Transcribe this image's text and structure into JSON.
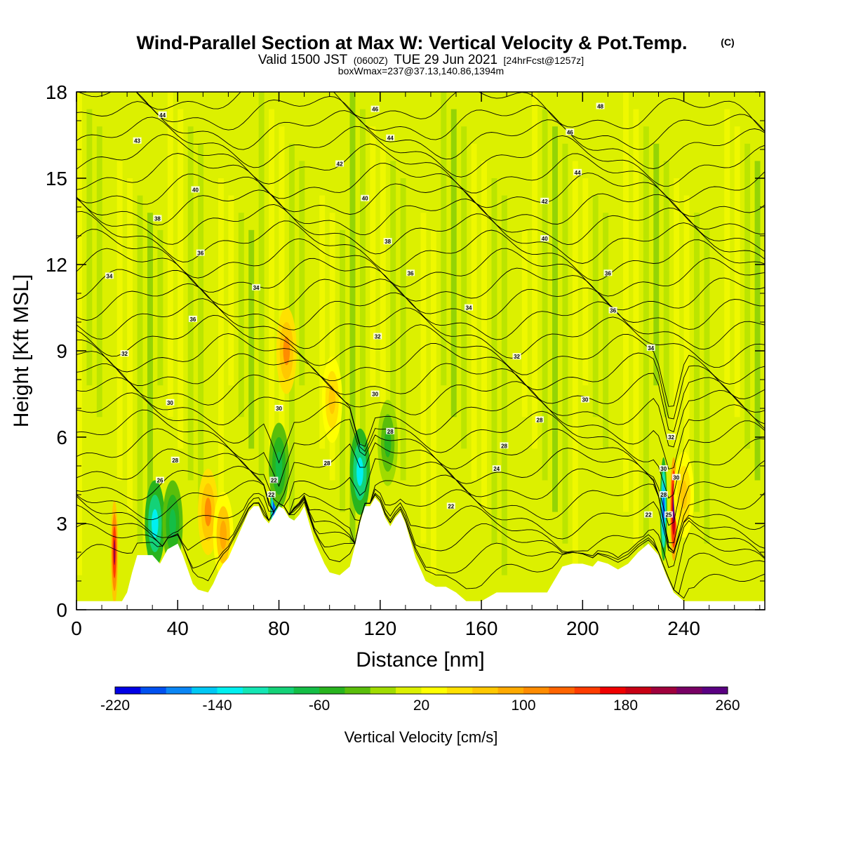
{
  "title": {
    "main": "Wind-Parallel Section at Max W: Vertical Velocity & Pot.Temp.",
    "copyright": "(C)",
    "valid_prefix": "Valid 1500 JST",
    "valid_utc": "(0600Z)",
    "valid_date": "TUE 29 Jun 2021",
    "forecast": "[24hrFcst@1257z]",
    "boxwmax": "boxWmax=237@37.13,140.86,1394m"
  },
  "chart_data": {
    "type": "heatmap",
    "xlabel": "Distance [nm]",
    "ylabel": "Height [Kft MSL]",
    "xlim": [
      0,
      272
    ],
    "ylim": [
      0,
      18
    ],
    "x_ticks": [
      0,
      40,
      80,
      120,
      160,
      200,
      240
    ],
    "y_ticks": [
      0,
      3,
      6,
      9,
      12,
      15,
      18
    ],
    "colorbar": {
      "label": "Vertical Velocity [cm/s]",
      "ticks": [
        -220,
        -140,
        -60,
        20,
        100,
        180,
        260
      ],
      "range": [
        -220,
        260
      ],
      "colors": [
        "#0000e6",
        "#0050f0",
        "#0a86f5",
        "#00c8f5",
        "#00f0f0",
        "#14e6b4",
        "#14d278",
        "#14be46",
        "#28b41e",
        "#5abe0a",
        "#a0dc00",
        "#dcf000",
        "#ffff00",
        "#ffe100",
        "#ffc800",
        "#ffaa00",
        "#ff8c00",
        "#ff6400",
        "#ff3c00",
        "#f00000",
        "#c80014",
        "#a0003c",
        "#780064",
        "#5a0082"
      ]
    },
    "background_value_cm_s": 10,
    "terrain_profile": [
      [
        0,
        0.3
      ],
      [
        10,
        0.3
      ],
      [
        18,
        0.3
      ],
      [
        20,
        0.6
      ],
      [
        22,
        1.3
      ],
      [
        24,
        1.9
      ],
      [
        30,
        1.9
      ],
      [
        33,
        1.6
      ],
      [
        36,
        2.1
      ],
      [
        40,
        2.3
      ],
      [
        42,
        1.9
      ],
      [
        44,
        1.4
      ],
      [
        46,
        0.9
      ],
      [
        48,
        0.7
      ],
      [
        52,
        0.6
      ],
      [
        54,
        0.9
      ],
      [
        56,
        1.3
      ],
      [
        58,
        1.6
      ],
      [
        60,
        1.8
      ],
      [
        62,
        2.2
      ],
      [
        64,
        2.6
      ],
      [
        66,
        3.0
      ],
      [
        68,
        3.4
      ],
      [
        70,
        3.6
      ],
      [
        72,
        3.6
      ],
      [
        74,
        3.2
      ],
      [
        76,
        3.0
      ],
      [
        78,
        3.3
      ],
      [
        80,
        3.6
      ],
      [
        82,
        3.5
      ],
      [
        84,
        3.2
      ],
      [
        86,
        3.1
      ],
      [
        88,
        3.3
      ],
      [
        90,
        3.6
      ],
      [
        92,
        3.0
      ],
      [
        94,
        2.4
      ],
      [
        96,
        2.0
      ],
      [
        98,
        1.6
      ],
      [
        100,
        1.3
      ],
      [
        104,
        1.2
      ],
      [
        108,
        1.5
      ],
      [
        110,
        2.2
      ],
      [
        112,
        3.0
      ],
      [
        114,
        3.6
      ],
      [
        116,
        3.6
      ],
      [
        118,
        3.9
      ],
      [
        120,
        3.7
      ],
      [
        122,
        3.2
      ],
      [
        124,
        2.9
      ],
      [
        126,
        3.2
      ],
      [
        128,
        3.4
      ],
      [
        130,
        3.0
      ],
      [
        132,
        2.4
      ],
      [
        134,
        1.8
      ],
      [
        136,
        1.4
      ],
      [
        138,
        1.0
      ],
      [
        142,
        0.8
      ],
      [
        146,
        0.8
      ],
      [
        150,
        0.6
      ],
      [
        154,
        0.3
      ],
      [
        160,
        0.3
      ],
      [
        166,
        0.6
      ],
      [
        176,
        0.6
      ],
      [
        182,
        0.6
      ],
      [
        186,
        0.6
      ],
      [
        188,
        0.9
      ],
      [
        190,
        1.2
      ],
      [
        192,
        1.5
      ],
      [
        196,
        1.6
      ],
      [
        200,
        1.6
      ],
      [
        204,
        1.5
      ],
      [
        206,
        1.7
      ],
      [
        210,
        1.6
      ],
      [
        214,
        1.4
      ],
      [
        218,
        1.6
      ],
      [
        222,
        2.0
      ],
      [
        226,
        2.3
      ],
      [
        230,
        1.9
      ],
      [
        233,
        1.2
      ],
      [
        236,
        0.6
      ],
      [
        240,
        0.3
      ],
      [
        272,
        0.3
      ]
    ],
    "theta_contours_c": [
      20,
      21,
      22,
      23,
      24,
      25,
      26,
      27,
      28,
      29,
      30,
      31,
      32,
      33,
      34,
      35,
      36,
      37,
      38,
      39,
      40,
      41,
      42,
      43,
      44,
      45,
      46,
      47,
      48,
      49
    ],
    "theta_labels": [
      {
        "x": 34,
        "y": 17.2,
        "text": "44"
      },
      {
        "x": 118,
        "y": 17.4,
        "text": "46"
      },
      {
        "x": 207,
        "y": 17.5,
        "text": "48"
      },
      {
        "x": 24,
        "y": 16.3,
        "text": "43"
      },
      {
        "x": 124,
        "y": 16.4,
        "text": "44"
      },
      {
        "x": 195,
        "y": 16.6,
        "text": "46"
      },
      {
        "x": 104,
        "y": 15.5,
        "text": "42"
      },
      {
        "x": 198,
        "y": 15.2,
        "text": "44"
      },
      {
        "x": 47,
        "y": 14.6,
        "text": "40"
      },
      {
        "x": 114,
        "y": 14.3,
        "text": "40"
      },
      {
        "x": 185,
        "y": 14.2,
        "text": "42"
      },
      {
        "x": 32,
        "y": 13.6,
        "text": "38"
      },
      {
        "x": 123,
        "y": 12.8,
        "text": "38"
      },
      {
        "x": 185,
        "y": 12.9,
        "text": "40"
      },
      {
        "x": 49,
        "y": 12.4,
        "text": "36"
      },
      {
        "x": 13,
        "y": 11.6,
        "text": "34"
      },
      {
        "x": 71,
        "y": 11.2,
        "text": "34"
      },
      {
        "x": 132,
        "y": 11.7,
        "text": "36"
      },
      {
        "x": 210,
        "y": 11.7,
        "text": "36"
      },
      {
        "x": 155,
        "y": 10.5,
        "text": "34"
      },
      {
        "x": 212,
        "y": 10.4,
        "text": "36"
      },
      {
        "x": 46,
        "y": 10.1,
        "text": "36"
      },
      {
        "x": 119,
        "y": 9.5,
        "text": "32"
      },
      {
        "x": 19,
        "y": 8.9,
        "text": "32"
      },
      {
        "x": 174,
        "y": 8.8,
        "text": "32"
      },
      {
        "x": 227,
        "y": 9.1,
        "text": "34"
      },
      {
        "x": 37,
        "y": 7.2,
        "text": "30"
      },
      {
        "x": 80,
        "y": 7.0,
        "text": "30"
      },
      {
        "x": 118,
        "y": 7.5,
        "text": "30"
      },
      {
        "x": 201,
        "y": 7.3,
        "text": "30"
      },
      {
        "x": 183,
        "y": 6.6,
        "text": "28"
      },
      {
        "x": 124,
        "y": 6.2,
        "text": "28"
      },
      {
        "x": 39,
        "y": 5.2,
        "text": "28"
      },
      {
        "x": 99,
        "y": 5.1,
        "text": "28"
      },
      {
        "x": 169,
        "y": 5.7,
        "text": "28"
      },
      {
        "x": 166,
        "y": 4.9,
        "text": "24"
      },
      {
        "x": 33,
        "y": 4.5,
        "text": "26"
      },
      {
        "x": 78,
        "y": 4.5,
        "text": "22"
      },
      {
        "x": 77,
        "y": 4.0,
        "text": "22"
      },
      {
        "x": 148,
        "y": 3.6,
        "text": "22"
      },
      {
        "x": 226,
        "y": 3.3,
        "text": "22"
      },
      {
        "x": 235,
        "y": 6.0,
        "text": "32"
      },
      {
        "x": 232,
        "y": 4.9,
        "text": "30"
      },
      {
        "x": 237,
        "y": 4.6,
        "text": "30"
      },
      {
        "x": 232,
        "y": 4.0,
        "text": "28"
      },
      {
        "x": 234,
        "y": 3.3,
        "text": "25"
      }
    ],
    "w_features_cm_s": [
      {
        "x": 15,
        "y": 2.0,
        "w": 200
      },
      {
        "x": 31,
        "y": 3.0,
        "w": -140
      },
      {
        "x": 38,
        "y": 3.0,
        "w": -80
      },
      {
        "x": 52,
        "y": 3.4,
        "w": 100
      },
      {
        "x": 58,
        "y": 2.6,
        "w": 90
      },
      {
        "x": 78,
        "y": 3.6,
        "w": -200
      },
      {
        "x": 80,
        "y": 5.0,
        "w": -80
      },
      {
        "x": 83,
        "y": 9.0,
        "w": 110
      },
      {
        "x": 101,
        "y": 7.3,
        "w": 70
      },
      {
        "x": 112,
        "y": 4.8,
        "w": -140
      },
      {
        "x": 123,
        "y": 5.8,
        "w": -60
      },
      {
        "x": 232,
        "y": 3.5,
        "w": -190
      },
      {
        "x": 236,
        "y": 3.5,
        "w": 250
      },
      {
        "x": 240,
        "y": 4.0,
        "w": 60
      }
    ]
  }
}
